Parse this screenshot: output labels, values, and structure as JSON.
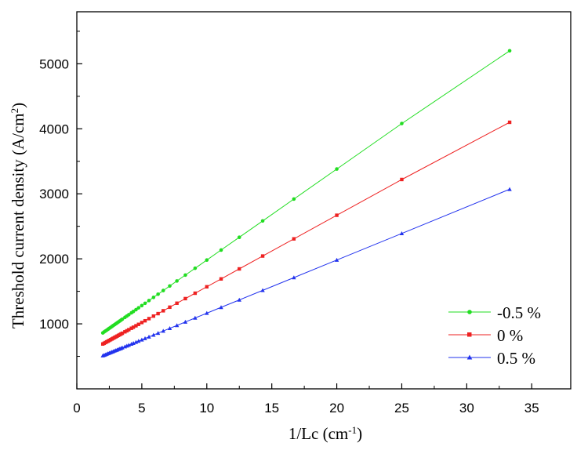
{
  "chart_data": {
    "type": "line",
    "title": "",
    "xlabel": {
      "base": "1/Lc (cm",
      "sup": "-1",
      "tail": ")"
    },
    "ylabel": {
      "base": "Threshold current density (A/cm",
      "sup": "2",
      "tail": ")"
    },
    "xlim": [
      0,
      38
    ],
    "ylim": [
      0,
      5800
    ],
    "xticks": [
      0,
      5,
      10,
      15,
      20,
      25,
      30,
      35
    ],
    "yticks": [
      1000,
      2000,
      3000,
      4000,
      5000
    ],
    "grid": false,
    "legend_position": "bottom-right",
    "x": [
      2.0,
      2.1,
      2.2,
      2.3,
      2.4,
      2.5,
      2.6,
      2.7,
      2.8,
      2.9,
      3.0,
      3.1,
      3.2,
      3.3,
      3.4,
      3.5,
      3.7,
      3.85,
      4.0,
      4.2,
      4.35,
      4.55,
      4.75,
      5.0,
      5.25,
      5.55,
      5.9,
      6.25,
      6.65,
      7.15,
      7.7,
      8.35,
      9.1,
      10.0,
      11.1,
      12.5,
      14.3,
      16.7,
      20.0,
      25.0,
      33.3
    ],
    "series": [
      {
        "name": "-0.5 %",
        "color": "#22dd22",
        "marker": "circle",
        "values": [
          860,
          875,
          889,
          903,
          917,
          931,
          945,
          959,
          973,
          987,
          1001,
          1015,
          1029,
          1043,
          1057,
          1071,
          1099,
          1120,
          1141,
          1169,
          1190,
          1218,
          1246,
          1281,
          1316,
          1358,
          1407,
          1456,
          1512,
          1582,
          1659,
          1750,
          1855,
          1981,
          2135,
          2331,
          2583,
          2919,
          3381,
          4081,
          5200
        ]
      },
      {
        "name": "0 %",
        "color": "#ee2222",
        "marker": "square",
        "values": [
          690,
          701,
          712,
          723,
          734,
          745,
          756,
          767,
          778,
          789,
          800,
          811,
          822,
          833,
          844,
          855,
          877,
          893,
          910,
          932,
          948,
          970,
          992,
          1020,
          1047,
          1080,
          1119,
          1157,
          1201,
          1256,
          1317,
          1388,
          1471,
          1570,
          1691,
          1845,
          2043,
          2307,
          2670,
          3220,
          4100
        ]
      },
      {
        "name": "0.5 %",
        "color": "#2233ee",
        "marker": "triangle",
        "values": [
          510,
          518,
          526,
          535,
          543,
          551,
          559,
          567,
          575,
          584,
          592,
          600,
          608,
          616,
          624,
          633,
          649,
          661,
          673,
          690,
          702,
          718,
          735,
          755,
          775,
          800,
          829,
          857,
          890,
          931,
          976,
          1029,
          1090,
          1164,
          1254,
          1368,
          1515,
          1711,
          1981,
          2390,
          3070
        ]
      }
    ]
  }
}
